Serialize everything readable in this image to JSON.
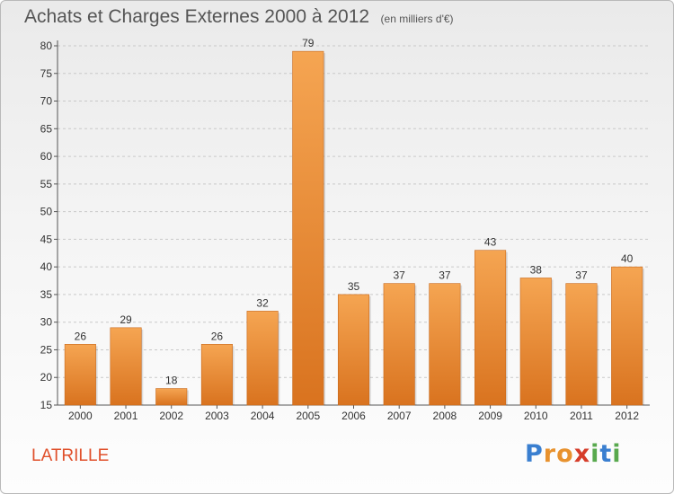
{
  "header": {
    "title": "Achats et Charges Externes 2000 à 2012",
    "unit": "(en milliers d'€)"
  },
  "place": "LATRILLE",
  "logo": {
    "text": "Proxiti",
    "letters": [
      {
        "ch": "P",
        "color": "#3a7fd0"
      },
      {
        "ch": "r",
        "color": "#e8922e"
      },
      {
        "ch": "o",
        "color": "#e8922e"
      },
      {
        "ch": "x",
        "color": "#d63d2a"
      },
      {
        "ch": "i",
        "color": "#58a94e"
      },
      {
        "ch": "t",
        "color": "#3a7fd0"
      },
      {
        "ch": "i",
        "color": "#58a94e"
      }
    ]
  },
  "colors": {
    "bar_light": "#f5a552",
    "bar_dark": "#d9731f",
    "grid": "#c9c9c9",
    "axis": "#555555",
    "text": "#333333",
    "place": "#e0502b"
  },
  "chart_data": {
    "type": "bar",
    "title": "Achats et Charges Externes 2000 à 2012",
    "subtitle": "(en milliers d'€)",
    "xlabel": "",
    "ylabel": "",
    "categories": [
      "2000",
      "2001",
      "2002",
      "2003",
      "2004",
      "2005",
      "2006",
      "2007",
      "2008",
      "2009",
      "2010",
      "2011",
      "2012"
    ],
    "values": [
      26,
      29,
      18,
      26,
      32,
      79,
      35,
      37,
      37,
      43,
      38,
      37,
      40
    ],
    "ylim": [
      15,
      80
    ],
    "yticks": [
      15,
      20,
      25,
      30,
      35,
      40,
      45,
      50,
      55,
      60,
      65,
      70,
      75,
      80
    ],
    "grid": true,
    "data_labels": true
  }
}
